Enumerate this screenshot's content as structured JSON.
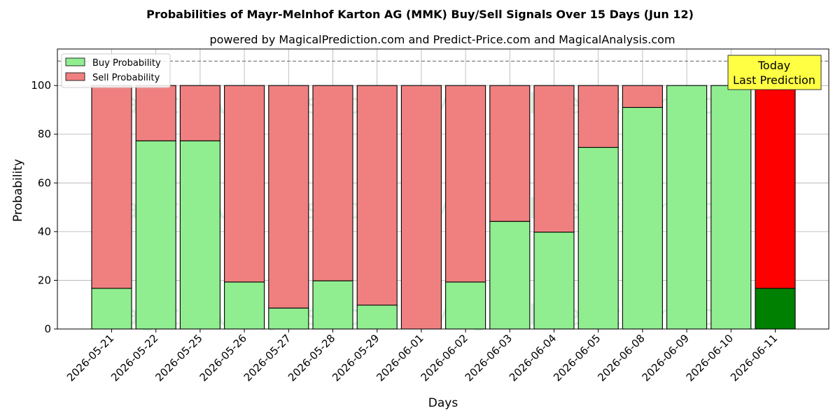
{
  "chart_data": {
    "type": "bar",
    "stacked": true,
    "title": "Probabilities of Mayr-Melnhof Karton AG (MMK) Buy/Sell Signals Over 15 Days (Jun 12)",
    "subtitle": "powered by MagicalPrediction.com and Predict-Price.com and MagicalAnalysis.com",
    "xlabel": "Days",
    "ylabel": "Probability",
    "ylim": [
      0,
      115
    ],
    "yticks": [
      0,
      20,
      40,
      60,
      80,
      100
    ],
    "grid": true,
    "legend_position": "top-left",
    "reference_line": 110,
    "categories": [
      "2026-05-21",
      "2026-05-22",
      "2026-05-25",
      "2026-05-26",
      "2026-05-27",
      "2026-05-28",
      "2026-05-29",
      "2026-06-01",
      "2026-06-02",
      "2026-06-03",
      "2026-06-04",
      "2026-06-05",
      "2026-06-08",
      "2026-06-09",
      "2026-06-10",
      "2026-06-11"
    ],
    "series": [
      {
        "name": "Buy Probability",
        "color": "#90ee90",
        "values": [
          16.7,
          77.3,
          77.3,
          19.3,
          8.6,
          19.8,
          9.8,
          0,
          19.3,
          44.2,
          39.8,
          74.6,
          91.0,
          100,
          100,
          16.7
        ]
      },
      {
        "name": "Sell Probability",
        "color": "#f08080",
        "values": [
          83.3,
          22.7,
          22.7,
          80.7,
          91.4,
          80.2,
          90.2,
          100,
          80.7,
          55.8,
          60.2,
          25.4,
          9.0,
          0,
          0,
          83.3
        ]
      }
    ],
    "highlight": {
      "index": 15,
      "buy_color": "#008000",
      "sell_color": "#ff0000"
    },
    "annotation": {
      "line1": "Today",
      "line2": "Last Prediction",
      "color": "#ffff44"
    },
    "watermarks": [
      "MagicalAnalysis.com",
      "MagicalPrediction.com"
    ]
  }
}
